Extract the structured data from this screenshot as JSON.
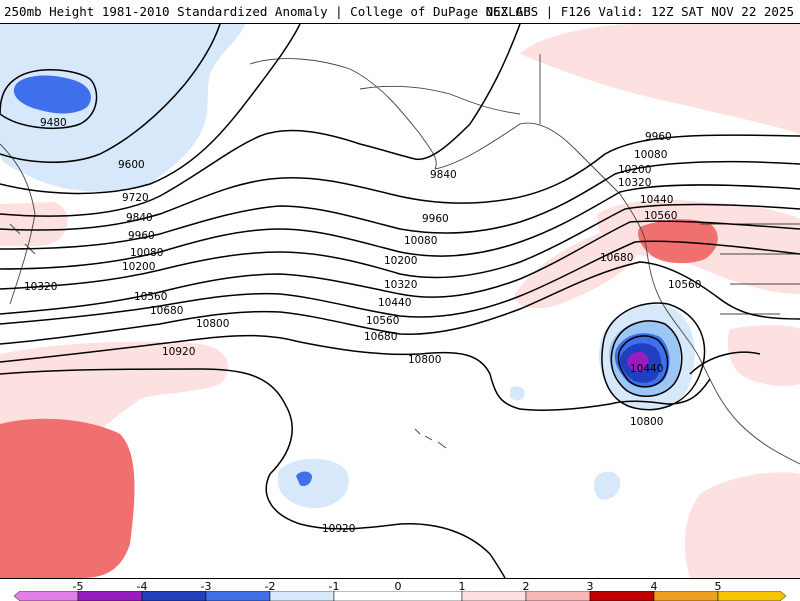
{
  "header": {
    "title_left": "250mb Height 1981-2010 Standardized Anomaly | College of DuPage NEXLAB",
    "title_right": "06Z GFS | F126 Valid: 12Z SAT NOV 22 2025"
  },
  "colors": {
    "neg5": "#e080e8",
    "neg4": "#9a1cc0",
    "neg3": "#1f3fc0",
    "neg2": "#3f6fea",
    "neg1": "#9cc6f4",
    "neg0": "#d6e8fa",
    "zero": "#ffffff",
    "pos0": "#fde0e0",
    "pos1": "#f8b8b8",
    "pos2": "#f07070",
    "pos3": "#c00000",
    "pos4": "#f0a020",
    "pos5": "#f6c400"
  },
  "contour_labels": [
    {
      "text": "9480"
    },
    {
      "text": "9600"
    },
    {
      "text": "9720"
    },
    {
      "text": "9840"
    },
    {
      "text": "9960"
    },
    {
      "text": "10080"
    },
    {
      "text": "10200"
    },
    {
      "text": "10320"
    },
    {
      "text": "10560"
    },
    {
      "text": "10680"
    },
    {
      "text": "10800"
    },
    {
      "text": "10920"
    },
    {
      "text": "9840"
    },
    {
      "text": "9960"
    },
    {
      "text": "10080"
    },
    {
      "text": "10200"
    },
    {
      "text": "10320"
    },
    {
      "text": "10440"
    },
    {
      "text": "10560"
    },
    {
      "text": "10680"
    },
    {
      "text": "10800"
    },
    {
      "text": "9960"
    },
    {
      "text": "10080"
    },
    {
      "text": "10200"
    },
    {
      "text": "10320"
    },
    {
      "text": "10440"
    },
    {
      "text": "10560"
    },
    {
      "text": "10680"
    },
    {
      "text": "10560"
    },
    {
      "text": "10440"
    },
    {
      "text": "10800"
    },
    {
      "text": "10920"
    }
  ],
  "colorbar": {
    "ticks": [
      "-5",
      "-4",
      "-3",
      "-2",
      "-1",
      "0",
      "1",
      "2",
      "3",
      "4",
      "5"
    ]
  }
}
